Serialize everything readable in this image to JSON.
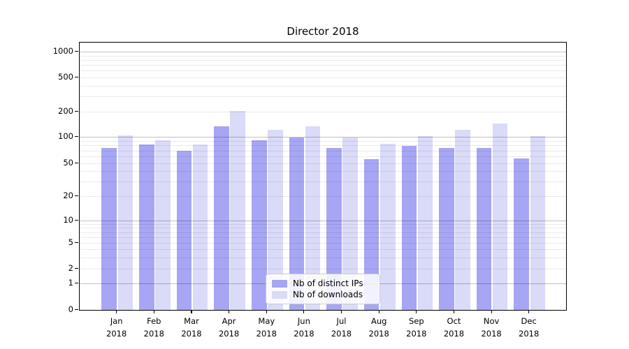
{
  "title": "Director 2018",
  "colors": {
    "distinct_ips_bar": "#a6a6f4",
    "downloads_bar": "#dadaf9",
    "major_gridline": "rgba(0,0,0,0.24)",
    "minor_gridline": "rgba(0,0,0,0.08)",
    "axis": "#000000"
  },
  "legend": {
    "items": [
      {
        "label": "Nb of distinct IPs",
        "color": "#a6a6f4"
      },
      {
        "label": "Nb of downloads",
        "color": "#dadaf9"
      }
    ]
  },
  "x_axis": {
    "months": [
      "Jan",
      "Feb",
      "Mar",
      "Apr",
      "May",
      "Jun",
      "Jul",
      "Aug",
      "Sep",
      "Oct",
      "Nov",
      "Dec"
    ],
    "year": "2018"
  },
  "y_axis": {
    "ticks": [
      0,
      1,
      2,
      5,
      10,
      20,
      50,
      100,
      200,
      500,
      1000
    ]
  },
  "chart_data": {
    "type": "bar",
    "title": "Director 2018",
    "categories": [
      "Jan 2018",
      "Feb 2018",
      "Mar 2018",
      "Apr 2018",
      "May 2018",
      "Jun 2018",
      "Jul 2018",
      "Aug 2018",
      "Sep 2018",
      "Oct 2018",
      "Nov 2018",
      "Dec 2018"
    ],
    "series": [
      {
        "name": "Nb of distinct IPs",
        "color": "#a6a6f4",
        "values": [
          73,
          80,
          68,
          131,
          90,
          96,
          74,
          55,
          77,
          73,
          74,
          56
        ]
      },
      {
        "name": "Nb of downloads",
        "color": "#dadaf9",
        "values": [
          103,
          90,
          80,
          200,
          118,
          131,
          96,
          82,
          100,
          119,
          141,
          101
        ]
      }
    ],
    "yscale": "symlog",
    "y_ticks": [
      0,
      1,
      2,
      5,
      10,
      20,
      50,
      100,
      200,
      500,
      1000
    ],
    "ylim": [
      0,
      1300
    ],
    "xlabel": "",
    "ylabel": "",
    "grid": true,
    "legend_position": "lower center"
  }
}
